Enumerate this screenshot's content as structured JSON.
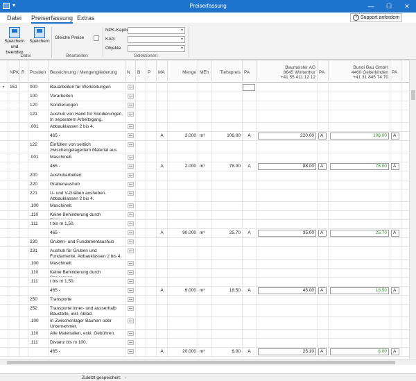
{
  "window": {
    "title": "Preiserfassung",
    "quick_access": "▾",
    "minimize": "—",
    "maximize": "☐",
    "close": "✕"
  },
  "menu": {
    "tabs": [
      "Datei",
      "Preiserfassung",
      "Extras"
    ],
    "active": "Preiserfassung",
    "support": "Support anfordern",
    "support_icon": "?"
  },
  "ribbon": {
    "save_close": [
      "Speichern",
      "und beenden"
    ],
    "save": "Speichern",
    "group_datei": "Datei",
    "gleiche_preise": "Gleiche Preise",
    "group_bearbeiten": "Bearbeiten",
    "npk_label": "NPK-Kapitel",
    "kag_label": "KAG",
    "objekte_label": "Objekte",
    "group_selektionen": "Selektionen"
  },
  "columns": {
    "npk": "NPK",
    "r": "R",
    "position": "Position",
    "bezeichnung": "Bezeichnung / Mengengliederung",
    "n": "N",
    "b": "B",
    "p": "P",
    "ma": "MA",
    "menge": "Menge",
    "meh": "MEh",
    "tiefstpreis": "Tiefstpreis",
    "pa": "PA"
  },
  "companies": [
    {
      "name": "Baumeister AG",
      "city": "8645 Winterthur",
      "phone": "+41 55 411 12 12",
      "pa": "PA"
    },
    {
      "name": "Bundi Bau GmbH",
      "city": "4460 Gelterkinden",
      "phone": "+41 31 845 74 70",
      "pa": "PA"
    }
  ],
  "rows": [
    {
      "npk": "151",
      "pos": "000",
      "text": "Bauarbeiten für Werkleitungen",
      "h": 13
    },
    {
      "pos": "100",
      "text": "Vorarbeiten",
      "h": 13
    },
    {
      "pos": "120",
      "text": "Sondierungen",
      "h": 13
    },
    {
      "pos": "121",
      "text": "Aushub von Hand für Sondierungen. In separatem Arbeitsgang.",
      "h": 18
    },
    {
      "pos": ".001",
      "text": "Abbauklassen 2 bis 4.",
      "h": 13
    },
    {
      "text": "465 -",
      "ma": "A",
      "menge": "2.000",
      "meh": "m³",
      "tiefst": "106.00",
      "pa": "A",
      "p1": "220.00",
      "pa1": "A",
      "p2": "106.00",
      "pa2": "A",
      "h": 13
    },
    {
      "pos": "122",
      "text": "Einfüllen von seitlich zwischengelagertem Material aus",
      "h": 18
    },
    {
      "pos": ".001",
      "text": "Maschinell.",
      "h": 13
    },
    {
      "text": "465 -",
      "ma": "A",
      "menge": "2.000",
      "meh": "m³",
      "tiefst": "78.00",
      "pa": "A",
      "p1": "88.00",
      "pa1": "A",
      "p2": "78.00",
      "pa2": "A",
      "h": 13
    },
    {
      "pos": "200",
      "text": "Aushubarbeiten",
      "h": 13
    },
    {
      "pos": "220",
      "text": "Grabenaushub",
      "h": 13
    },
    {
      "pos": "221",
      "text": "U- und V-Gräben ausheben. Abbauklassen 2 bis 4.",
      "h": 18
    },
    {
      "pos": ".100",
      "text": "Maschinell.",
      "h": 13
    },
    {
      "pos": ".110",
      "text": "Keine Behinderung durch Spriessung.",
      "h": 13
    },
    {
      "pos": ".111",
      "text": "t bis m 1,50.",
      "h": 13
    },
    {
      "text": "465 -",
      "ma": "A",
      "menge": "90.000",
      "meh": "m³",
      "tiefst": "25.70",
      "pa": "A",
      "p1": "35.00",
      "pa1": "A",
      "p2": "25.70",
      "pa2": "A",
      "h": 13
    },
    {
      "pos": "230",
      "text": "Gruben- und Fundamentaushub",
      "h": 13
    },
    {
      "pos": "231",
      "text": "Aushub für Gruben und Fundamente, Abbauklassen 2 bis 4.",
      "h": 18
    },
    {
      "pos": ".100",
      "text": "Maschinell.",
      "h": 13
    },
    {
      "pos": ".110",
      "text": "Keine Behinderung durch Spriessung.",
      "h": 13
    },
    {
      "pos": ".111",
      "text": "t bis m 1,50.",
      "h": 13
    },
    {
      "text": "465 -",
      "ma": "A",
      "menge": "6.000",
      "meh": "m³",
      "tiefst": "18.50",
      "pa": "A",
      "p1": "45.00",
      "pa1": "A",
      "p2": "18.50",
      "pa2": "A",
      "h": 13
    },
    {
      "pos": "250",
      "text": "Transporte",
      "h": 13
    },
    {
      "pos": "252",
      "text": "Transporte inner- und ausserhalb Baustelle, inkl. Ablad.",
      "h": 18
    },
    {
      "pos": ".100",
      "text": "In Zwischenlager Bauherr oder Unternehmer.",
      "h": 18
    },
    {
      "pos": ".110",
      "text": "Alle Materialien, exkl. Gebühren.",
      "h": 13
    },
    {
      "pos": ".111",
      "text": "Distanz bis m 100.",
      "h": 13
    },
    {
      "text": "465 -",
      "ma": "A",
      "menge": "20.000",
      "meh": "m³",
      "tiefst": "6.00",
      "pa": "A",
      "p1": "25.10",
      "pa1": "A",
      "p2": "6.00",
      "pa2": "A",
      "h": 13
    }
  ],
  "status": {
    "label": "Zuletzt gespeichert:",
    "value": "-"
  }
}
